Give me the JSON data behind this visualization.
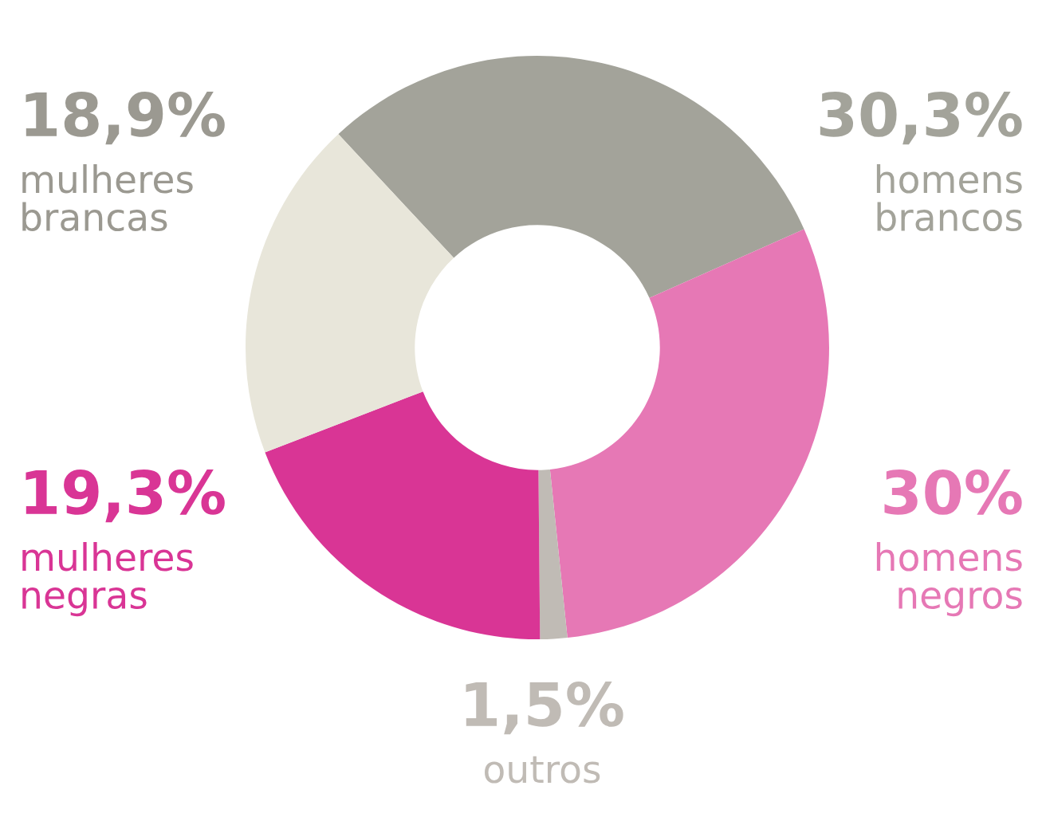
{
  "chart_data": {
    "type": "donut",
    "categories": [
      "homens brancos",
      "homens negros",
      "outros",
      "mulheres negras",
      "mulheres brancas"
    ],
    "values": [
      30.3,
      30,
      1.5,
      19.3,
      18.9
    ],
    "value_labels": [
      "30,3%",
      "30%",
      "1,5%",
      "19,3%",
      "18,9%"
    ],
    "colors": [
      "#a3a39a",
      "#e678b5",
      "#c0bbb5",
      "#d93595",
      "#e8e6da"
    ],
    "legend": false
  }
}
